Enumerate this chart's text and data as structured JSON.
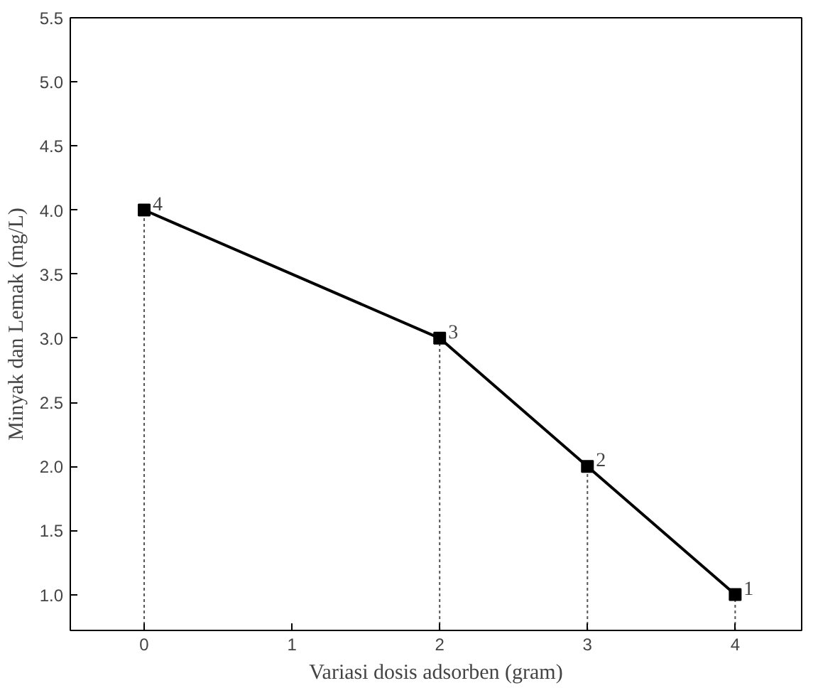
{
  "chart_data": {
    "type": "line",
    "xlabel": "Variasi dosis adsorben (gram)",
    "ylabel": "Minyak dan Lemak (mg/L)",
    "x": [
      0,
      2,
      3,
      4
    ],
    "series": [
      {
        "color": "#000000",
        "values": [
          4,
          3,
          2,
          1
        ]
      }
    ],
    "data_labels": true,
    "marker": "square",
    "line_style": "solid",
    "grid": false,
    "xlim": [
      -0.5,
      4.45
    ],
    "xticks": [
      0,
      1,
      2,
      3,
      4
    ],
    "ylim": [
      0.72,
      5.5
    ],
    "yticks": [
      {
        "value": 1,
        "label": "1.0"
      },
      {
        "value": 1.5,
        "label": "1.5"
      },
      {
        "value": 2,
        "label": "2.0"
      },
      {
        "value": 2.5,
        "label": "2.5"
      },
      {
        "value": 3,
        "label": "3.0"
      },
      {
        "value": 3.5,
        "label": "3.5"
      },
      {
        "value": 4,
        "label": "4.0"
      },
      {
        "value": 4.5,
        "label": "4.5"
      },
      {
        "value": 5,
        "label": "5.0"
      },
      {
        "value": 5.5,
        "label": "5.5"
      }
    ]
  }
}
